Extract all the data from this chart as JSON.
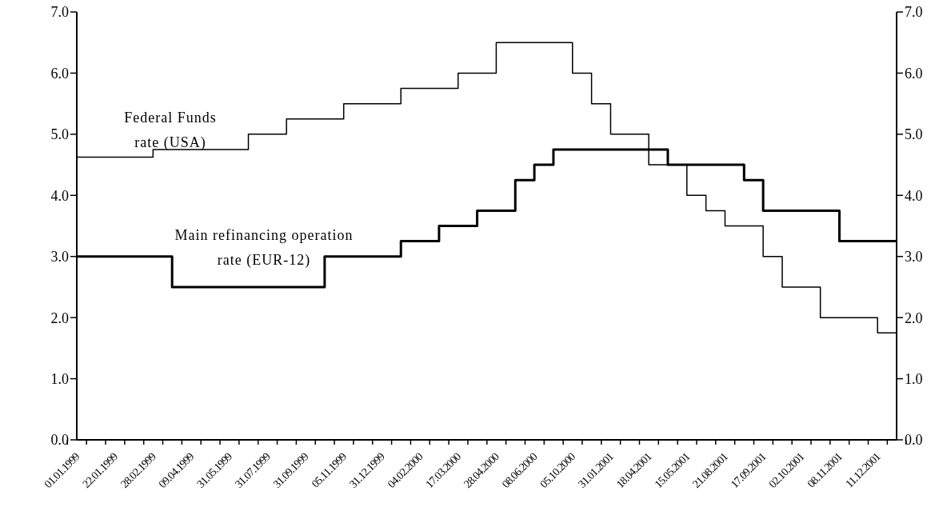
{
  "chart_data": {
    "type": "step",
    "categories": [
      "01.01.1999",
      null,
      "22.01.1999",
      null,
      "28.02.1999",
      null,
      "09.04.1999",
      null,
      "31.05.1999",
      null,
      "31.07.1999",
      null,
      "31.09.1999",
      null,
      "05.11.1999",
      null,
      "31.12.1999",
      null,
      "04.02.2000",
      null,
      "17.03.2000",
      null,
      "28.04.2000",
      null,
      "08.06.2000",
      null,
      "05.10.2000",
      null,
      "31.01.2001",
      null,
      "18.04.2001",
      null,
      "15.05.2001",
      null,
      "21.08.2001",
      null,
      "17.09.2001",
      null,
      "02.10.2001",
      null,
      "08.11.2001",
      null,
      "11.12.2001",
      null
    ],
    "series": [
      {
        "name": "Federal Funds rate (USA)",
        "color": "#000000",
        "values": [
          4.625,
          4.625,
          4.625,
          4.625,
          4.75,
          4.75,
          4.75,
          4.75,
          4.75,
          5.0,
          5.0,
          5.25,
          5.25,
          5.25,
          5.5,
          5.5,
          5.5,
          5.75,
          5.75,
          5.75,
          6.0,
          6.0,
          6.5,
          6.5,
          6.5,
          6.5,
          6.0,
          5.5,
          5.0,
          5.0,
          4.5,
          4.5,
          4.0,
          3.75,
          3.5,
          3.5,
          3.0,
          2.5,
          2.5,
          2.0,
          2.0,
          2.0,
          1.75,
          1.75
        ]
      },
      {
        "name": "Main refinancing operation rate (EUR-12)",
        "color": "#000000",
        "values": [
          3.0,
          3.0,
          3.0,
          3.0,
          3.0,
          2.5,
          2.5,
          2.5,
          2.5,
          2.5,
          2.5,
          2.5,
          2.5,
          3.0,
          3.0,
          3.0,
          3.0,
          3.25,
          3.25,
          3.5,
          3.5,
          3.75,
          3.75,
          4.25,
          4.5,
          4.75,
          4.75,
          4.75,
          4.75,
          4.75,
          4.75,
          4.5,
          4.5,
          4.5,
          4.5,
          4.25,
          3.75,
          3.75,
          3.75,
          3.75,
          3.25,
          3.25,
          3.25,
          3.25
        ]
      }
    ],
    "ylim": [
      0,
      7
    ],
    "yticks": [
      {
        "value": 0,
        "label": "0.0"
      },
      {
        "value": 1,
        "label": "1.0"
      },
      {
        "value": 2,
        "label": "2.0"
      },
      {
        "value": 3,
        "label": "3.0"
      },
      {
        "value": 4,
        "label": "4.0"
      },
      {
        "value": 5,
        "label": "5.0"
      },
      {
        "value": 6,
        "label": "6.0"
      },
      {
        "value": 7,
        "label": "7.0"
      }
    ],
    "y2lim": [
      0,
      7
    ],
    "y2ticks": [
      {
        "value": 0,
        "label": "0.0"
      },
      {
        "value": 1,
        "label": "1.0"
      },
      {
        "value": 2,
        "label": "2.0"
      },
      {
        "value": 3,
        "label": "3.0"
      },
      {
        "value": 4,
        "label": "4.0"
      },
      {
        "value": 5,
        "label": "5.0"
      },
      {
        "value": 6,
        "label": "6.0"
      },
      {
        "value": 7,
        "label": "7.0"
      }
    ],
    "grid": false,
    "legend": false,
    "line_style": "solid"
  }
}
